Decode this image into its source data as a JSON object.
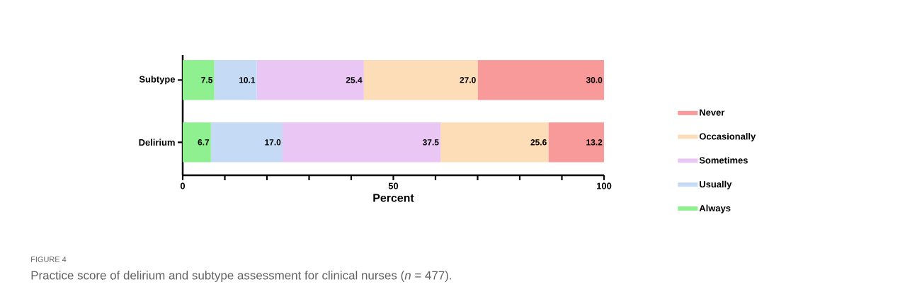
{
  "chart_data": {
    "type": "bar",
    "orientation": "horizontal",
    "stacked": true,
    "xlabel": "Percent",
    "categories": [
      "Subtype",
      "Delirium"
    ],
    "series": [
      {
        "name": "Always",
        "color": "#8ef08e",
        "values": [
          7.5,
          6.7
        ],
        "value_labels": [
          "7.5",
          "6.7"
        ]
      },
      {
        "name": "Usually",
        "color": "#c5daf5",
        "values": [
          10.1,
          17.0
        ],
        "value_labels": [
          "10.1",
          "17.0"
        ]
      },
      {
        "name": "Sometimes",
        "color": "#e9c6f3",
        "values": [
          25.4,
          37.5
        ],
        "value_labels": [
          "25.4",
          "37.5"
        ]
      },
      {
        "name": "Occasionally",
        "color": "#fddcb8",
        "values": [
          27.0,
          25.6
        ],
        "value_labels": [
          "27.0",
          "25.6"
        ]
      },
      {
        "name": "Never",
        "color": "#f99a9a",
        "values": [
          30.0,
          13.2
        ],
        "value_labels": [
          "30.0",
          "13.2"
        ]
      }
    ],
    "xlim": [
      0,
      100
    ],
    "xticks": [
      0,
      {
        "value": 10,
        "label": null
      },
      {
        "value": 20,
        "label": null
      },
      {
        "value": 30,
        "label": null
      },
      {
        "value": 40,
        "label": null
      },
      50,
      {
        "value": 60,
        "label": null
      },
      {
        "value": 70,
        "label": null
      },
      {
        "value": 80,
        "label": null
      },
      {
        "value": 90,
        "label": null
      },
      100
    ],
    "legend": "right",
    "grid": false,
    "annotations": [
      "FIGURE 4",
      "Practice score of delirium and subtype assessment for clinical nurses (*n* = 477)."
    ]
  }
}
